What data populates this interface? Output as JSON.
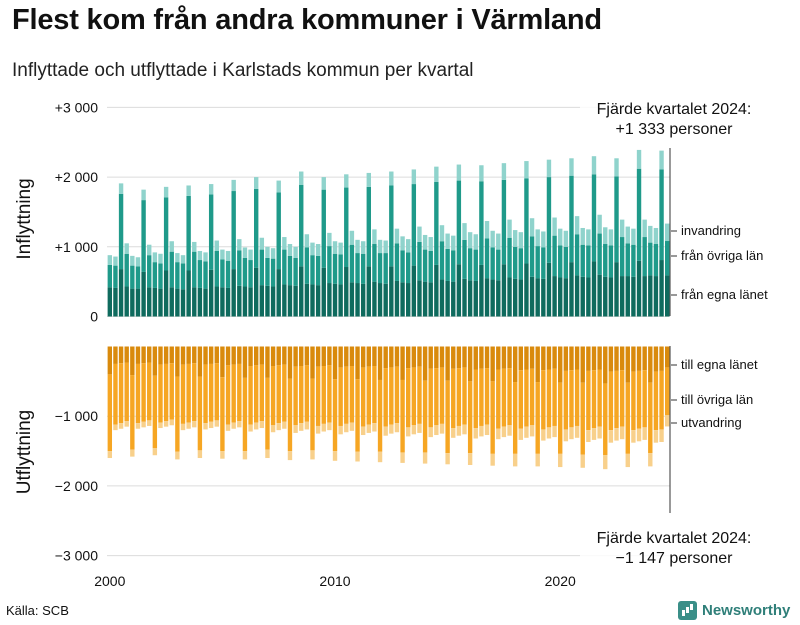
{
  "header": {
    "title": "Flest kom från andra kommuner i Värmland",
    "subtitle": "Inflyttade och utflyttade i Karlstads kommun per kvartal"
  },
  "footer": {
    "source": "Källa: SCB",
    "brand": "Newsworthy"
  },
  "colors": {
    "in_egna": "#0f6b5e",
    "in_ovriga": "#1f9a8a",
    "in_invandring": "#8fd3cc",
    "out_egna": "#d98a0c",
    "out_ovriga": "#f6a623",
    "out_utvandring": "#f8d08b"
  },
  "chart_data": {
    "type": "bar",
    "stacked": true,
    "x_start": "2000 Q1",
    "x_end": "2024 Q4",
    "x_ticks": [
      2000,
      2010,
      2020
    ],
    "y_ticks": [
      {
        "value": 3000,
        "label": "+3 000"
      },
      {
        "value": 2000,
        "label": "+2 000"
      },
      {
        "value": 1000,
        "label": "+1 000"
      },
      {
        "value": 0,
        "label": "0"
      },
      {
        "value": -1000,
        "label": "−1 000"
      },
      {
        "value": -2000,
        "label": "−2 000"
      },
      {
        "value": -3000,
        "label": "−3 000"
      }
    ],
    "ylim": [
      -3000,
      3000
    ],
    "ylabel_top": "Inflyttning",
    "ylabel_bottom": "Utflyttning",
    "series": [
      {
        "name": "från egna länet",
        "panel": "in",
        "color_key": "in_egna"
      },
      {
        "name": "från övriga län",
        "panel": "in",
        "color_key": "in_ovriga"
      },
      {
        "name": "invandring",
        "panel": "in",
        "color_key": "in_invandring"
      },
      {
        "name": "till egna länet",
        "panel": "out",
        "color_key": "out_egna"
      },
      {
        "name": "till övriga län",
        "panel": "out",
        "color_key": "out_ovriga"
      },
      {
        "name": "utvandring",
        "panel": "out",
        "color_key": "out_utvandring"
      }
    ],
    "annotations": {
      "in_line1": "Fjärde kvartalet 2024:",
      "in_line2": "+1 333 personer",
      "out_line1": "Fjärde kvartalet 2024:",
      "out_line2": "−1 147 personer"
    },
    "inflow_total": [
      880,
      860,
      1910,
      1050,
      870,
      850,
      1820,
      1030,
      920,
      900,
      1860,
      1080,
      910,
      880,
      1880,
      1070,
      940,
      920,
      1900,
      1090,
      960,
      940,
      1960,
      1110,
      990,
      960,
      2000,
      1130,
      1000,
      980,
      1950,
      1140,
      1040,
      1000,
      2080,
      1180,
      1060,
      1040,
      2000,
      1200,
      1080,
      1060,
      2040,
      1230,
      1100,
      1080,
      2060,
      1250,
      1100,
      1090,
      2080,
      1260,
      1150,
      1110,
      2110,
      1290,
      1170,
      1140,
      2150,
      1310,
      1190,
      1160,
      2180,
      1340,
      1210,
      1180,
      2170,
      1370,
      1230,
      1190,
      2200,
      1390,
      1240,
      1210,
      2230,
      1410,
      1250,
      1220,
      2250,
      1420,
      1260,
      1230,
      2270,
      1440,
      1270,
      1250,
      2300,
      1460,
      1280,
      1250,
      2270,
      1390,
      1290,
      1260,
      2390,
      1390,
      1300,
      1270,
      2380,
      1333
    ],
    "inflow_egna": [
      420,
      410,
      680,
      430,
      400,
      400,
      640,
      420,
      410,
      400,
      660,
      420,
      400,
      390,
      660,
      420,
      410,
      400,
      670,
      430,
      420,
      410,
      680,
      440,
      430,
      420,
      700,
      450,
      440,
      430,
      680,
      460,
      450,
      440,
      720,
      470,
      460,
      450,
      700,
      480,
      470,
      460,
      710,
      490,
      480,
      470,
      720,
      500,
      480,
      470,
      720,
      510,
      490,
      480,
      730,
      520,
      500,
      490,
      740,
      530,
      510,
      500,
      750,
      540,
      520,
      510,
      740,
      550,
      530,
      520,
      750,
      560,
      540,
      530,
      760,
      570,
      550,
      540,
      770,
      580,
      560,
      550,
      780,
      590,
      570,
      560,
      790,
      600,
      570,
      560,
      780,
      580,
      580,
      570,
      800,
      580,
      590,
      580,
      810,
      590
    ],
    "inflow_invandring": [
      140,
      130,
      150,
      150,
      140,
      130,
      150,
      150,
      140,
      140,
      150,
      150,
      130,
      120,
      150,
      140,
      130,
      130,
      150,
      150,
      140,
      140,
      160,
      160,
      150,
      150,
      170,
      170,
      160,
      150,
      170,
      180,
      170,
      160,
      190,
      190,
      180,
      170,
      180,
      190,
      180,
      170,
      190,
      200,
      190,
      180,
      200,
      210,
      190,
      180,
      200,
      210,
      200,
      190,
      210,
      220,
      210,
      200,
      220,
      230,
      220,
      210,
      230,
      240,
      230,
      220,
      230,
      250,
      240,
      230,
      240,
      260,
      240,
      230,
      250,
      260,
      240,
      230,
      250,
      260,
      240,
      230,
      250,
      260,
      240,
      230,
      260,
      270,
      240,
      230,
      260,
      250,
      240,
      230,
      270,
      250,
      240,
      230,
      270,
      250
    ],
    "outflow_total": [
      1600,
      1200,
      1180,
      1150,
      1580,
      1180,
      1160,
      1140,
      1560,
      1170,
      1150,
      1130,
      1620,
      1200,
      1180,
      1160,
      1600,
      1190,
      1170,
      1150,
      1610,
      1210,
      1180,
      1160,
      1620,
      1220,
      1190,
      1170,
      1600,
      1230,
      1200,
      1180,
      1630,
      1240,
      1210,
      1190,
      1620,
      1250,
      1220,
      1200,
      1640,
      1260,
      1230,
      1210,
      1650,
      1270,
      1240,
      1220,
      1660,
      1280,
      1250,
      1230,
      1670,
      1290,
      1260,
      1240,
      1680,
      1300,
      1270,
      1250,
      1690,
      1310,
      1280,
      1260,
      1700,
      1320,
      1290,
      1270,
      1710,
      1330,
      1300,
      1280,
      1720,
      1340,
      1310,
      1290,
      1720,
      1350,
      1320,
      1300,
      1730,
      1360,
      1330,
      1310,
      1740,
      1370,
      1340,
      1320,
      1760,
      1380,
      1350,
      1330,
      1730,
      1380,
      1360,
      1340,
      1720,
      1380,
      1370,
      1147
    ],
    "outflow_egna": [
      400,
      250,
      240,
      230,
      410,
      250,
      240,
      230,
      420,
      260,
      250,
      240,
      430,
      260,
      250,
      240,
      430,
      260,
      250,
      240,
      440,
      270,
      260,
      250,
      450,
      280,
      270,
      260,
      450,
      280,
      270,
      260,
      460,
      290,
      280,
      270,
      460,
      290,
      280,
      270,
      470,
      300,
      290,
      280,
      470,
      300,
      290,
      280,
      480,
      310,
      300,
      290,
      480,
      310,
      300,
      290,
      490,
      320,
      310,
      300,
      490,
      320,
      310,
      300,
      500,
      330,
      320,
      310,
      500,
      330,
      320,
      310,
      510,
      340,
      330,
      320,
      510,
      340,
      330,
      320,
      520,
      350,
      340,
      330,
      520,
      350,
      340,
      330,
      530,
      360,
      350,
      340,
      520,
      360,
      350,
      340,
      520,
      360,
      350,
      300
    ],
    "outflow_utvandring": [
      100,
      80,
      80,
      80,
      100,
      80,
      80,
      80,
      100,
      80,
      80,
      80,
      110,
      90,
      90,
      90,
      110,
      90,
      90,
      90,
      110,
      90,
      90,
      90,
      120,
      100,
      100,
      100,
      120,
      100,
      100,
      100,
      130,
      110,
      110,
      110,
      130,
      110,
      110,
      110,
      140,
      120,
      120,
      120,
      140,
      120,
      120,
      120,
      150,
      130,
      130,
      130,
      150,
      130,
      130,
      130,
      160,
      140,
      140,
      140,
      160,
      140,
      140,
      140,
      170,
      150,
      150,
      150,
      170,
      150,
      150,
      150,
      180,
      160,
      160,
      160,
      180,
      160,
      160,
      160,
      190,
      170,
      170,
      170,
      190,
      170,
      170,
      170,
      200,
      180,
      180,
      180,
      190,
      180,
      180,
      180,
      190,
      180,
      180,
      160
    ]
  }
}
